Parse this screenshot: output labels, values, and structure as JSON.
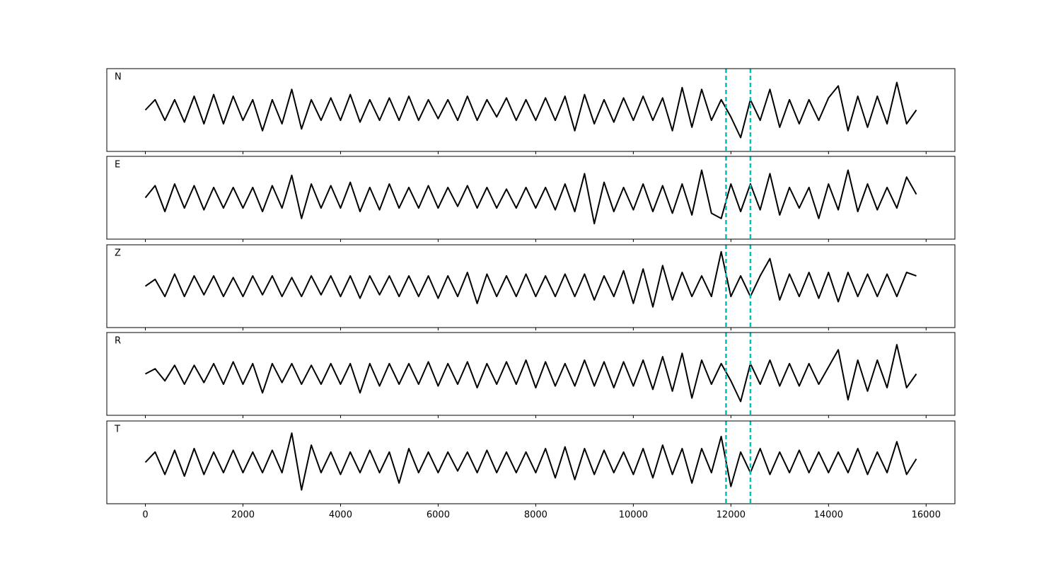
{
  "chart_data": {
    "type": "line",
    "x": [
      0,
      200,
      400,
      600,
      800,
      1000,
      1200,
      1400,
      1600,
      1800,
      2000,
      2200,
      2400,
      2600,
      2800,
      3000,
      3200,
      3400,
      3600,
      3800,
      4000,
      4200,
      4400,
      4600,
      4800,
      5000,
      5200,
      5400,
      5600,
      5800,
      6000,
      6200,
      6400,
      6600,
      6800,
      7000,
      7200,
      7400,
      7600,
      7800,
      8000,
      8200,
      8400,
      8600,
      8800,
      9000,
      9200,
      9400,
      9600,
      9800,
      10000,
      10200,
      10400,
      10600,
      10800,
      11000,
      11200,
      11400,
      11600,
      11800,
      12000,
      12200,
      12400,
      12600,
      12800,
      13000,
      13200,
      13400,
      13600,
      13800,
      14000,
      14200,
      14400,
      14600,
      14800,
      15000,
      15200,
      15400,
      15600,
      15800
    ],
    "series": [
      {
        "name": "N",
        "color": "#000000",
        "values": [
          0,
          0.3,
          -0.3,
          0.3,
          -0.35,
          0.4,
          -0.4,
          0.45,
          -0.4,
          0.4,
          -0.3,
          0.3,
          -0.6,
          0.3,
          -0.4,
          0.6,
          -0.55,
          0.3,
          -0.3,
          0.35,
          -0.3,
          0.45,
          -0.35,
          0.3,
          -0.3,
          0.35,
          -0.3,
          0.4,
          -0.3,
          0.3,
          -0.25,
          0.3,
          -0.3,
          0.4,
          -0.3,
          0.3,
          -0.2,
          0.35,
          -0.3,
          0.3,
          -0.3,
          0.35,
          -0.3,
          0.4,
          -0.6,
          0.45,
          -0.4,
          0.3,
          -0.35,
          0.35,
          -0.3,
          0.4,
          -0.3,
          0.35,
          -0.6,
          0.65,
          -0.5,
          0.6,
          -0.3,
          0.3,
          -0.2,
          -0.8,
          0.3,
          -0.3,
          0.6,
          -0.5,
          0.3,
          -0.4,
          0.3,
          -0.3,
          0.35,
          0.7,
          -0.6,
          0.4,
          -0.5,
          0.4,
          -0.4,
          0.8,
          -0.4,
          0.0
        ]
      },
      {
        "name": "E",
        "color": "#000000",
        "values": [
          0,
          0.35,
          -0.4,
          0.4,
          -0.3,
          0.35,
          -0.35,
          0.3,
          -0.3,
          0.3,
          -0.3,
          0.3,
          -0.4,
          0.35,
          -0.3,
          0.65,
          -0.6,
          0.4,
          -0.3,
          0.35,
          -0.3,
          0.45,
          -0.4,
          0.3,
          -0.35,
          0.4,
          -0.3,
          0.3,
          -0.3,
          0.35,
          -0.3,
          0.3,
          -0.25,
          0.35,
          -0.3,
          0.3,
          -0.3,
          0.25,
          -0.3,
          0.3,
          -0.3,
          0.3,
          -0.35,
          0.4,
          -0.4,
          0.7,
          -0.75,
          0.45,
          -0.4,
          0.3,
          -0.35,
          0.4,
          -0.4,
          0.35,
          -0.45,
          0.4,
          -0.5,
          0.8,
          -0.45,
          -0.6,
          0.4,
          -0.4,
          0.4,
          -0.35,
          0.7,
          -0.5,
          0.3,
          -0.3,
          0.3,
          -0.6,
          0.4,
          -0.35,
          0.8,
          -0.4,
          0.4,
          -0.35,
          0.3,
          -0.3,
          0.6,
          0.1
        ]
      },
      {
        "name": "Z",
        "color": "#000000",
        "values": [
          0,
          0.2,
          -0.3,
          0.35,
          -0.3,
          0.3,
          -0.25,
          0.3,
          -0.3,
          0.25,
          -0.3,
          0.3,
          -0.25,
          0.3,
          -0.3,
          0.25,
          -0.3,
          0.3,
          -0.25,
          0.3,
          -0.3,
          0.3,
          -0.35,
          0.3,
          -0.25,
          0.3,
          -0.3,
          0.3,
          -0.3,
          0.3,
          -0.35,
          0.3,
          -0.3,
          0.4,
          -0.5,
          0.35,
          -0.3,
          0.3,
          -0.3,
          0.35,
          -0.3,
          0.3,
          -0.3,
          0.35,
          -0.3,
          0.35,
          -0.4,
          0.3,
          -0.3,
          0.45,
          -0.5,
          0.5,
          -0.6,
          0.6,
          -0.4,
          0.4,
          -0.3,
          0.3,
          -0.3,
          1.0,
          -0.3,
          0.3,
          -0.3,
          0.3,
          0.8,
          -0.4,
          0.35,
          -0.3,
          0.4,
          -0.35,
          0.4,
          -0.45,
          0.4,
          -0.3,
          0.35,
          -0.3,
          0.35,
          -0.3,
          0.4,
          0.3
        ]
      },
      {
        "name": "R",
        "color": "#000000",
        "values": [
          0,
          0.15,
          -0.2,
          0.25,
          -0.3,
          0.25,
          -0.25,
          0.3,
          -0.3,
          0.35,
          -0.3,
          0.3,
          -0.55,
          0.3,
          -0.25,
          0.3,
          -0.3,
          0.25,
          -0.3,
          0.3,
          -0.3,
          0.3,
          -0.55,
          0.3,
          -0.35,
          0.3,
          -0.3,
          0.3,
          -0.3,
          0.35,
          -0.35,
          0.3,
          -0.3,
          0.35,
          -0.4,
          0.3,
          -0.3,
          0.35,
          -0.3,
          0.4,
          -0.4,
          0.35,
          -0.35,
          0.3,
          -0.35,
          0.4,
          -0.35,
          0.35,
          -0.4,
          0.35,
          -0.35,
          0.4,
          -0.45,
          0.5,
          -0.5,
          0.6,
          -0.7,
          0.4,
          -0.3,
          0.3,
          -0.2,
          -0.8,
          0.3,
          -0.3,
          0.4,
          -0.35,
          0.3,
          -0.35,
          0.3,
          -0.3,
          0.2,
          0.7,
          -0.75,
          0.4,
          -0.5,
          0.4,
          -0.4,
          0.85,
          -0.4,
          0.0
        ]
      },
      {
        "name": "T",
        "color": "#000000",
        "values": [
          0,
          0.3,
          -0.35,
          0.35,
          -0.4,
          0.4,
          -0.35,
          0.3,
          -0.3,
          0.35,
          -0.3,
          0.3,
          -0.3,
          0.35,
          -0.3,
          0.85,
          -0.8,
          0.5,
          -0.3,
          0.3,
          -0.35,
          0.3,
          -0.3,
          0.35,
          -0.3,
          0.3,
          -0.6,
          0.4,
          -0.3,
          0.3,
          -0.3,
          0.3,
          -0.25,
          0.3,
          -0.3,
          0.35,
          -0.3,
          0.3,
          -0.3,
          0.3,
          -0.3,
          0.4,
          -0.45,
          0.45,
          -0.5,
          0.4,
          -0.35,
          0.35,
          -0.3,
          0.3,
          -0.35,
          0.4,
          -0.45,
          0.5,
          -0.35,
          0.4,
          -0.6,
          0.4,
          -0.3,
          0.75,
          -0.7,
          0.3,
          -0.3,
          0.4,
          -0.35,
          0.3,
          -0.3,
          0.35,
          -0.3,
          0.3,
          -0.3,
          0.3,
          -0.3,
          0.4,
          -0.35,
          0.3,
          -0.3,
          0.6,
          -0.35,
          0.1
        ]
      }
    ],
    "xlim": [
      -790,
      16590
    ],
    "xticks": [
      0,
      2000,
      4000,
      6000,
      8000,
      10000,
      12000,
      14000,
      16000
    ],
    "ylim": [
      -1.2,
      1.2
    ],
    "vlines": [
      11900,
      12400
    ],
    "vline_color": "#00bfbf"
  }
}
